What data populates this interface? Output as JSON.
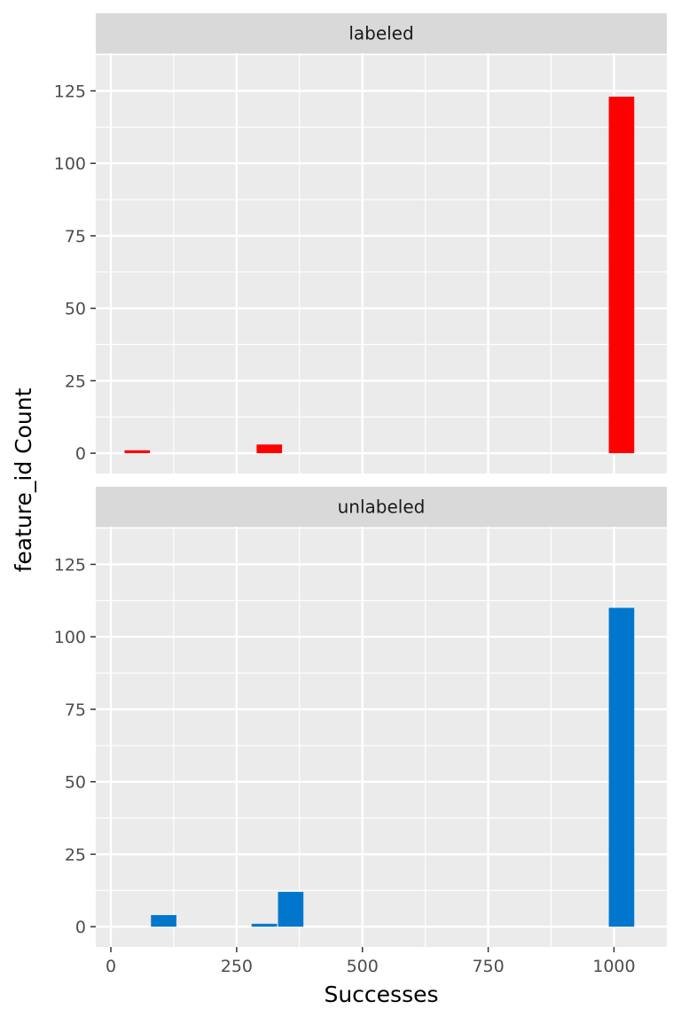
{
  "chart_data": {
    "type": "bar",
    "xlabel": "Successes",
    "ylabel": "feature_id Count",
    "xlim": [
      -30,
      1105
    ],
    "ylim": [
      -7,
      138
    ],
    "x_ticks": [
      0,
      250,
      500,
      750,
      1000
    ],
    "x_tick_labels": [
      "0",
      "250",
      "500",
      "750",
      "1000"
    ],
    "y_ticks": [
      0,
      25,
      50,
      75,
      100,
      125
    ],
    "y_tick_labels": [
      "0",
      "25",
      "50",
      "75",
      "100",
      "125"
    ],
    "bin_width": 52.5,
    "grid": true,
    "legend": "none",
    "facets": [
      {
        "label": "labeled",
        "color": "#FF0000",
        "bins": [
          {
            "x": 52.5,
            "count": 1
          },
          {
            "x": 315,
            "count": 3
          },
          {
            "x": 1015,
            "count": 123
          }
        ]
      },
      {
        "label": "unlabeled",
        "color": "#0077CC",
        "bins": [
          {
            "x": 105,
            "count": 4
          },
          {
            "x": 305,
            "count": 1
          },
          {
            "x": 357.5,
            "count": 12
          },
          {
            "x": 1015,
            "count": 110
          }
        ]
      }
    ]
  }
}
